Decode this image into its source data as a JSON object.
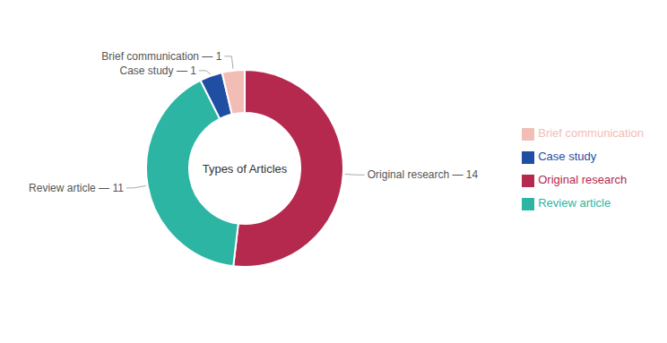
{
  "chart_data": {
    "type": "donut",
    "title": "Types of Articles",
    "categories": [
      "Original research",
      "Review article",
      "Case study",
      "Brief communication"
    ],
    "values": [
      14,
      11,
      1,
      1
    ],
    "colors": [
      "#b5294e",
      "#2db5a3",
      "#1f4ea3",
      "#f2bdb5"
    ],
    "data_labels": true,
    "value_labels": [
      "Original research — 14",
      "Review article — 11",
      "Case study — 1",
      "Brief communication — 1"
    ],
    "legend": "right"
  }
}
